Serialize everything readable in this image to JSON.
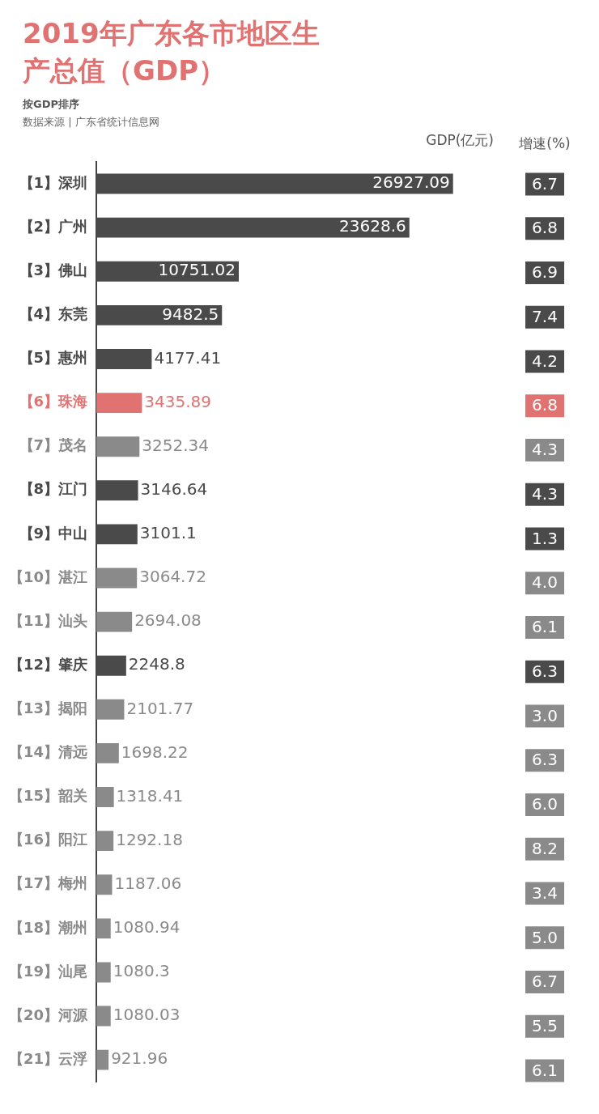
{
  "chart_data": [
    {
      "type": "bar",
      "orientation": "horizontal",
      "title": "2019年广东各市地区生产总值（GDP）",
      "subtitle": "按GDP排序",
      "annotations": [
        "数据来源 | 广东省统计信息网"
      ],
      "xlabel": "GDP(亿元)",
      "categories": [
        "【1】深圳",
        "【2】广州",
        "【3】佛山",
        "【4】东莞",
        "【5】惠州",
        "【6】珠海",
        "【7】茂名",
        "【8】江门",
        "【9】中山",
        "【10】湛江",
        "【11】汕头",
        "【12】肇庆",
        "【13】揭阳",
        "【14】清远",
        "【15】韶关",
        "【16】阳江",
        "【17】梅州",
        "【18】潮州",
        "【19】汕尾",
        "【20】河源",
        "【21】云浮"
      ],
      "values": [
        26927.09,
        23628.6,
        10751.02,
        9482.5,
        4177.41,
        3435.89,
        3252.34,
        3146.64,
        3101.1,
        3064.72,
        2694.08,
        2248.8,
        2101.77,
        1698.22,
        1318.41,
        1292.18,
        1187.06,
        1080.94,
        1080.3,
        1080.03,
        921.96
      ],
      "colors": [
        "#4a4a4a",
        "#4a4a4a",
        "#4a4a4a",
        "#4a4a4a",
        "#4a4a4a",
        "#e07272",
        "#8a8a8a",
        "#4a4a4a",
        "#4a4a4a",
        "#8a8a8a",
        "#8a8a8a",
        "#4a4a4a",
        "#8a8a8a",
        "#8a8a8a",
        "#8a8a8a",
        "#8a8a8a",
        "#8a8a8a",
        "#8a8a8a",
        "#8a8a8a",
        "#8a8a8a",
        "#8a8a8a"
      ],
      "data_labels": true
    },
    {
      "type": "heatmap",
      "categories": [
        "增速(%)"
      ],
      "y_categories": [
        null,
        null,
        null,
        null,
        null,
        null,
        null,
        null,
        null,
        null,
        null,
        null,
        null,
        null,
        null,
        null,
        null,
        null,
        null,
        null,
        null
      ],
      "cells": [
        [
          6.7
        ],
        [
          6.8
        ],
        [
          6.9
        ],
        [
          7.4
        ],
        [
          4.2
        ],
        [
          6.8
        ],
        [
          4.3
        ],
        [
          4.3
        ],
        [
          1.3
        ],
        [
          4.0
        ],
        [
          6.1
        ],
        [
          6.3
        ],
        [
          3.0
        ],
        [
          6.3
        ],
        [
          6.0
        ],
        [
          8.2
        ],
        [
          3.4
        ],
        [
          5.0
        ],
        [
          6.7
        ],
        [
          5.5
        ],
        [
          6.1
        ]
      ],
      "cell_labels": [
        [
          "6.7"
        ],
        [
          "6.8"
        ],
        [
          "6.9"
        ],
        [
          "7.4"
        ],
        [
          "4.2"
        ],
        [
          "6.8"
        ],
        [
          "4.3"
        ],
        [
          "4.3"
        ],
        [
          "1.3"
        ],
        [
          "4.0"
        ],
        [
          "6.1"
        ],
        [
          "6.3"
        ],
        [
          "3.0"
        ],
        [
          "6.3"
        ],
        [
          "6.0"
        ],
        [
          "8.2"
        ],
        [
          "3.4"
        ],
        [
          "5.0"
        ],
        [
          "6.7"
        ],
        [
          "5.5"
        ],
        [
          "6.1"
        ]
      ],
      "colors": [
        "#4a4a4a",
        "#4a4a4a",
        "#4a4a4a",
        "#4a4a4a",
        "#4a4a4a",
        "#e07272",
        "#8a8a8a",
        "#4a4a4a",
        "#4a4a4a",
        "#8a8a8a",
        "#8a8a8a",
        "#4a4a4a",
        "#8a8a8a",
        "#8a8a8a",
        "#8a8a8a",
        "#8a8a8a",
        "#8a8a8a",
        "#8a8a8a",
        "#8a8a8a",
        "#8a8a8a",
        "#8a8a8a"
      ]
    }
  ]
}
